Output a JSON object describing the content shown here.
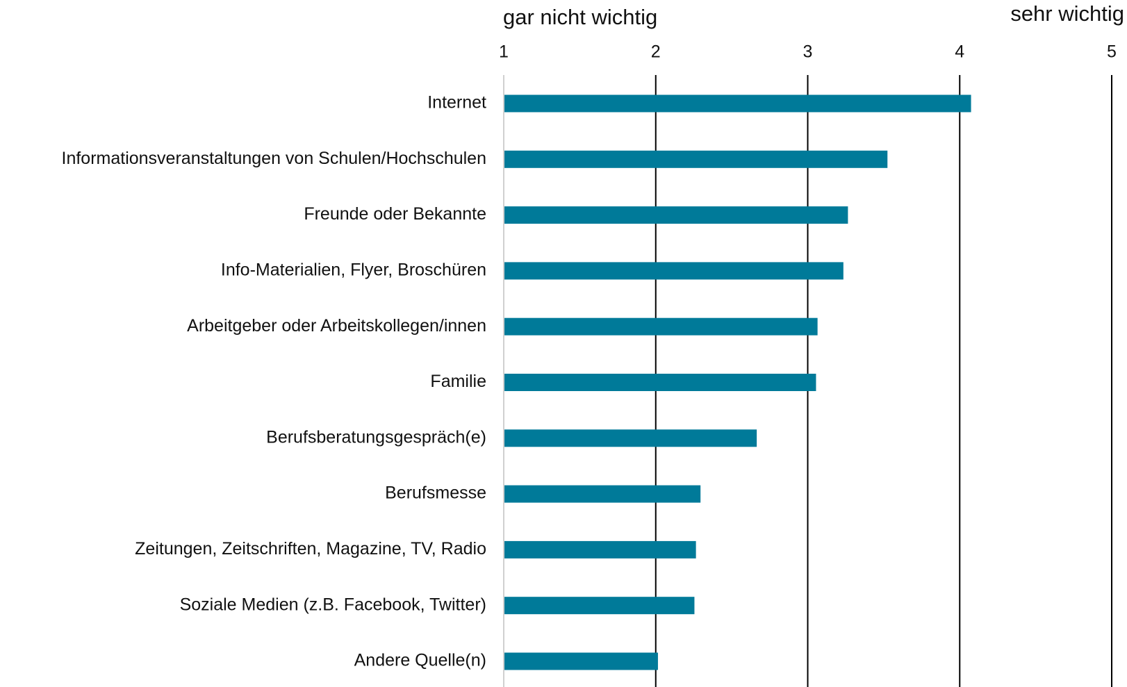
{
  "chart_data": {
    "type": "barh",
    "annotations": [
      "gar nicht wichtig",
      "sehr wichtig"
    ],
    "categories": [
      "Internet",
      "Informationsveranstaltungen von Schulen/Hochschulen",
      "Freunde oder Bekannte",
      "Info-Materialien, Flyer, Broschüren",
      "Arbeitgeber oder Arbeitskollegen/innen",
      "Familie",
      "Berufsberatungsgespräch(e)",
      "Berufsmesse",
      "Zeitungen, Zeitschriften, Magazine, TV, Radio",
      "Soziale Medien (z.B. Facebook, Twitter)",
      "Andere Quelle(n)"
    ],
    "values": [
      4.07,
      3.52,
      3.26,
      3.23,
      3.06,
      3.05,
      2.66,
      2.29,
      2.26,
      2.25,
      2.01
    ],
    "color": "#007a99",
    "xlim": [
      1,
      5
    ],
    "xticks": [
      1,
      2,
      3,
      4,
      5
    ],
    "grid": true,
    "grid_color": "#000000",
    "axis_color": "#d0d0d0"
  }
}
